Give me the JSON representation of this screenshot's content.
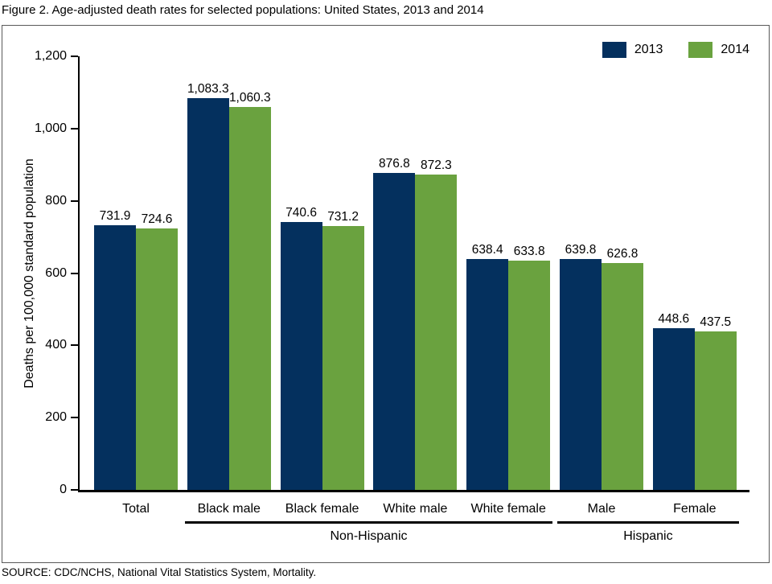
{
  "page": {
    "source": "SOURCE: CDC/NCHS, National Vital Statistics System, Mortality."
  },
  "chart_data": {
    "type": "bar",
    "title": "Figure 2. Age-adjusted death rates for selected populations: United States, 2013 and 2014",
    "xlabel": "",
    "ylabel": "Deaths per 100,000 standard population",
    "ylim": [
      0,
      1200
    ],
    "yticks": [
      0,
      200,
      400,
      600,
      800,
      1000,
      1200
    ],
    "ytick_labels": [
      "0",
      "200",
      "400",
      "600",
      "800",
      "1,000",
      "1,200"
    ],
    "categories": [
      "Total",
      "Black male",
      "Black female",
      "White male",
      "White female",
      "Male",
      "Female"
    ],
    "series": [
      {
        "name": "2013",
        "color": "#04305E",
        "values": [
          731.9,
          1083.3,
          740.6,
          876.8,
          638.4,
          639.8,
          448.6
        ],
        "value_labels": [
          "731.9",
          "1,083.3",
          "740.6",
          "876.8",
          "638.4",
          "639.8",
          "448.6"
        ]
      },
      {
        "name": "2014",
        "color": "#6AA23F",
        "values": [
          724.6,
          1060.3,
          731.2,
          872.3,
          633.8,
          626.8,
          437.5
        ],
        "value_labels": [
          "724.6",
          "1,060.3",
          "731.2",
          "872.3",
          "633.8",
          "626.8",
          "437.5"
        ]
      }
    ],
    "category_groups": [
      {
        "label": "Non-Hispanic",
        "from_index": 1,
        "to_index": 4
      },
      {
        "label": "Hispanic",
        "from_index": 5,
        "to_index": 6
      }
    ],
    "legend_position": "top-right",
    "grid": false
  }
}
